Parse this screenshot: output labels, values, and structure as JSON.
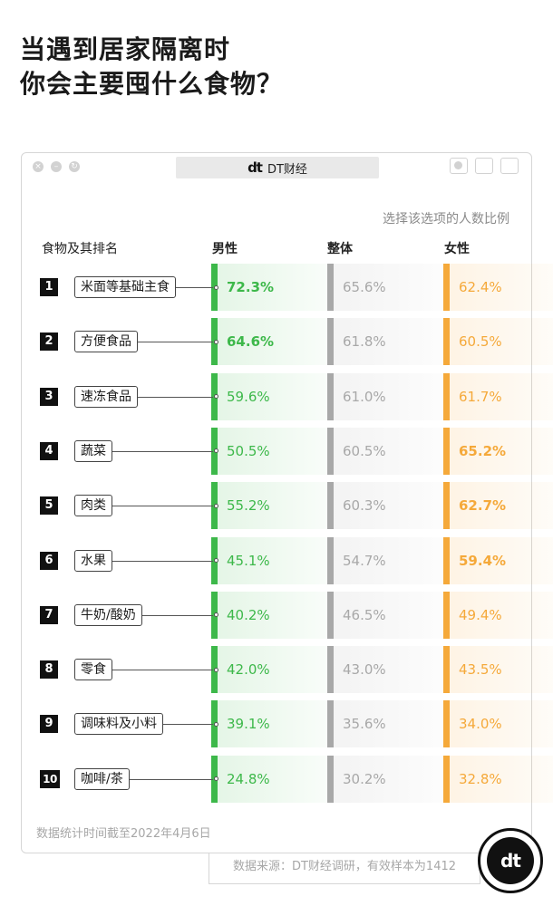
{
  "title": {
    "line1": "当遇到居家隔离时",
    "line2": "你会主要囤什么食物？"
  },
  "window": {
    "logo": "dt",
    "brand": "DT财经"
  },
  "chart_data": {
    "type": "table",
    "subtitle": "选择该选项的人数比例",
    "columns": {
      "name": "食物及其排名",
      "male": "男性",
      "overall": "整体",
      "female": "女性"
    },
    "colors": {
      "male": "#3db84a",
      "overall": "#a8a8a8",
      "female": "#f5a93a"
    },
    "rows": [
      {
        "rank": "1",
        "name": "米面等基础主食",
        "male": 72.3,
        "overall": 65.6,
        "female": 62.4,
        "highlight": "male"
      },
      {
        "rank": "2",
        "name": "方便食品",
        "male": 64.6,
        "overall": 61.8,
        "female": 60.5,
        "highlight": "male"
      },
      {
        "rank": "3",
        "name": "速冻食品",
        "male": 59.6,
        "overall": 61.0,
        "female": 61.7,
        "highlight": ""
      },
      {
        "rank": "4",
        "name": "蔬菜",
        "male": 50.5,
        "overall": 60.5,
        "female": 65.2,
        "highlight": "female"
      },
      {
        "rank": "5",
        "name": "肉类",
        "male": 55.2,
        "overall": 60.3,
        "female": 62.7,
        "highlight": "female"
      },
      {
        "rank": "6",
        "name": "水果",
        "male": 45.1,
        "overall": 54.7,
        "female": 59.4,
        "highlight": "female"
      },
      {
        "rank": "7",
        "name": "牛奶/酸奶",
        "male": 40.2,
        "overall": 46.5,
        "female": 49.4,
        "highlight": ""
      },
      {
        "rank": "8",
        "name": "零食",
        "male": 42.0,
        "overall": 43.0,
        "female": 43.5,
        "highlight": ""
      },
      {
        "rank": "9",
        "name": "调味料及小料",
        "male": 39.1,
        "overall": 35.6,
        "female": 34.0,
        "highlight": ""
      },
      {
        "rank": "10",
        "name": "咖啡/茶",
        "male": 24.8,
        "overall": 30.2,
        "female": 32.8,
        "highlight": ""
      }
    ]
  },
  "footnote": "数据统计时间截至2022年4月6日",
  "source": "数据来源：DT财经调研，有效样本为1412",
  "badge": "dt"
}
